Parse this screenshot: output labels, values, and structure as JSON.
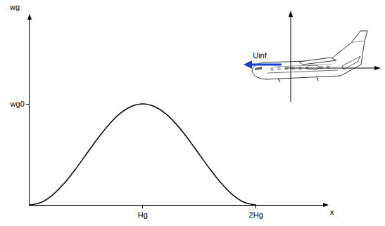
{
  "chart_data": {
    "type": "line",
    "x_label": "x",
    "y_label": "wg",
    "annotation": "Uinf",
    "x": [
      0,
      0.1,
      0.2,
      0.3,
      0.4,
      0.5,
      0.6,
      0.7,
      0.8,
      0.9,
      1,
      1.1,
      1.2,
      1.3,
      1.4,
      1.5,
      1.6,
      1.7,
      1.8,
      1.9,
      2
    ],
    "values": [
      0,
      0.024,
      0.095,
      0.206,
      0.345,
      0.5,
      0.655,
      0.794,
      0.905,
      0.976,
      1,
      0.976,
      0.905,
      0.794,
      0.655,
      0.5,
      0.345,
      0.206,
      0.095,
      0.024,
      0
    ],
    "color": "#000000",
    "xlim": [
      0,
      2.63
    ],
    "ylim": [
      0,
      1.875
    ],
    "xticks": [
      {
        "value": 1,
        "label": "Hg"
      },
      {
        "value": 2,
        "label": "2Hg"
      }
    ],
    "yticks": [
      {
        "value": 1,
        "label": "wg0"
      }
    ],
    "grid": false
  }
}
